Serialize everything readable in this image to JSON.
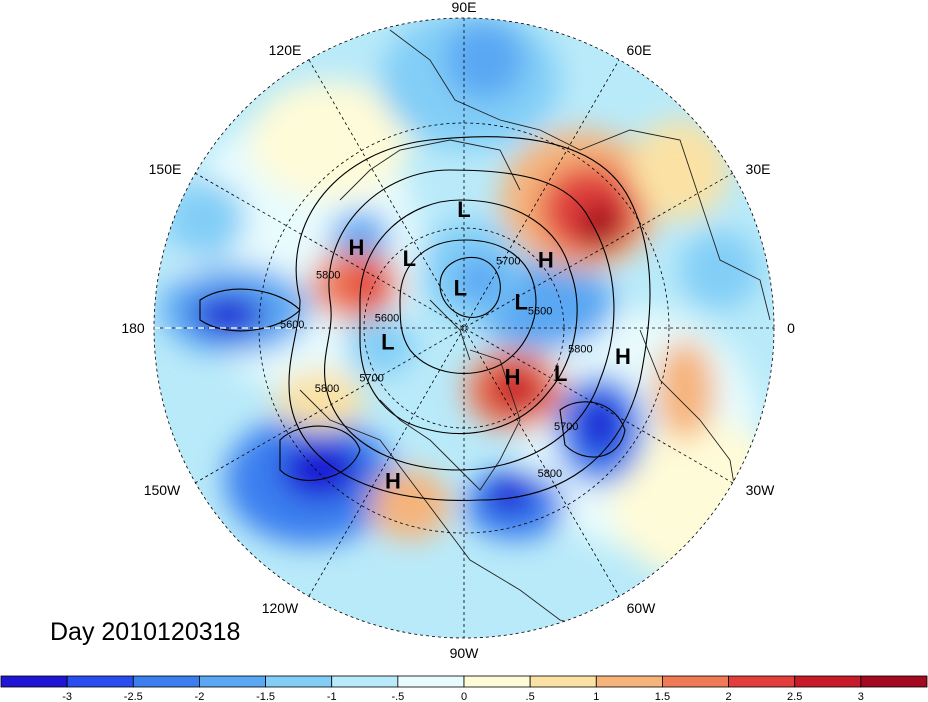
{
  "map": {
    "day_label": "Day 2010120318",
    "longitude_labels": {
      "top": "90E",
      "upper_right": "60E",
      "right_upper": "30E",
      "right": "0",
      "right_lower": "30W",
      "lower_right": "60W",
      "bottom": "90W",
      "lower_left": "120W",
      "left_lower": "150W",
      "left": "180",
      "left_upper": "150E",
      "upper_left": "120E"
    },
    "pressure_centers": [
      {
        "type": "L",
        "lon_deg": 90,
        "lat_deg": 48
      },
      {
        "type": "H",
        "lon_deg": 40,
        "lat_deg": 52
      },
      {
        "type": "L",
        "lon_deg": 128,
        "lat_deg": 58
      },
      {
        "type": "H",
        "lon_deg": 143,
        "lat_deg": 43
      },
      {
        "type": "L",
        "lon_deg": 95,
        "lat_deg": 75
      },
      {
        "type": "L",
        "lon_deg": 25,
        "lat_deg": 67
      },
      {
        "type": "L",
        "lon_deg": 190,
        "lat_deg": 62
      },
      {
        "type": "H",
        "lon_deg": 315,
        "lat_deg": 65
      },
      {
        "type": "L",
        "lon_deg": 335,
        "lat_deg": 52
      },
      {
        "type": "H",
        "lon_deg": 350,
        "lat_deg": 35
      },
      {
        "type": "H",
        "lon_deg": 245,
        "lat_deg": 33
      }
    ],
    "contour_labels": [
      {
        "text": "5800",
        "lon_deg": 160,
        "lat_deg": 40
      },
      {
        "text": "5600",
        "lon_deg": 180,
        "lat_deg": 32
      },
      {
        "text": "5600",
        "lon_deg": 175,
        "lat_deg": 62
      },
      {
        "text": "5700",
        "lon_deg": 210,
        "lat_deg": 52
      },
      {
        "text": "5800",
        "lon_deg": 205,
        "lat_deg": 38
      },
      {
        "text": "5700",
        "lon_deg": 55,
        "lat_deg": 62
      },
      {
        "text": "5600",
        "lon_deg": 10,
        "lat_deg": 62
      },
      {
        "text": "5800",
        "lon_deg": 348,
        "lat_deg": 48
      },
      {
        "text": "5700",
        "lon_deg": 315,
        "lat_deg": 40
      },
      {
        "text": "5800",
        "lon_deg": 300,
        "lat_deg": 32
      }
    ]
  },
  "colorbar": {
    "tick_labels": [
      "-3",
      "-2.5",
      "-2",
      "-1.5",
      "-1",
      "-.5",
      "0",
      ".5",
      "1",
      "1.5",
      "2",
      "2.5",
      "3"
    ],
    "colors": [
      "#1f16d4",
      "#2a4df0",
      "#3b7fef",
      "#5aa7f3",
      "#82cef7",
      "#b9eaf9",
      "#e8fbfd",
      "#fefbd8",
      "#fbe2a4",
      "#f6b37a",
      "#ef7a56",
      "#e23f3c",
      "#c71b29",
      "#a3091f"
    ]
  }
}
